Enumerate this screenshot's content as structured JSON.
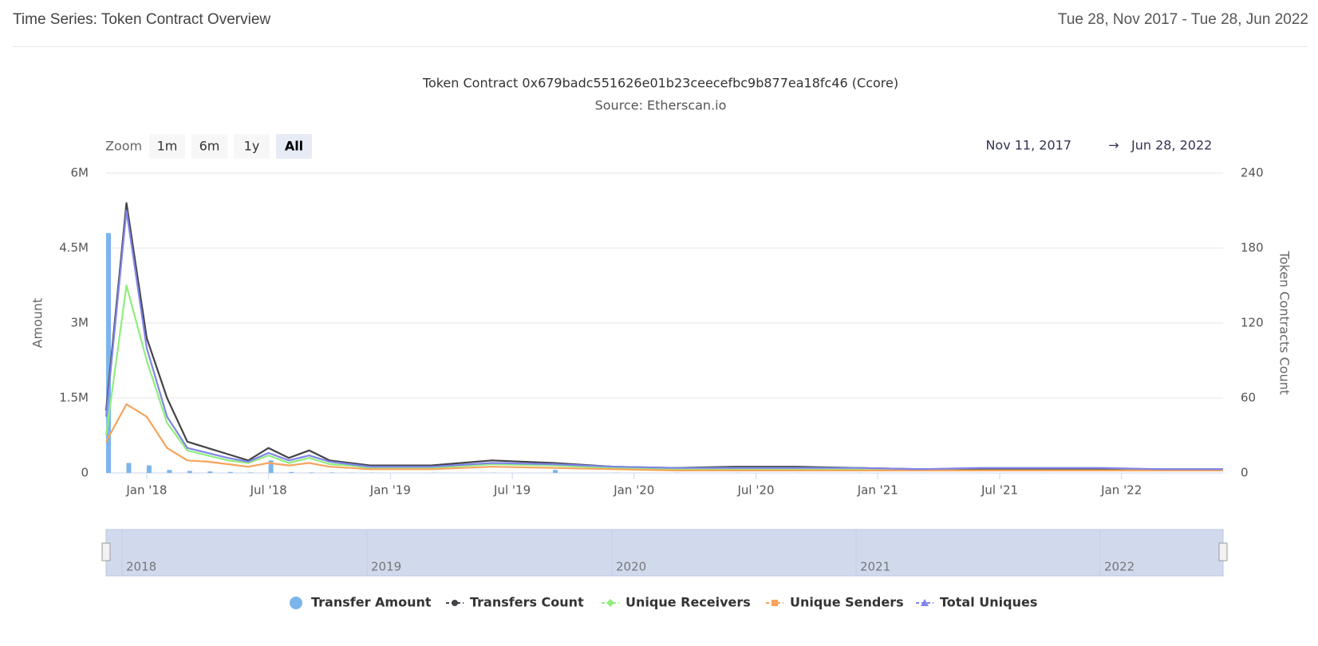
{
  "header": {
    "title": "Time Series: Token Contract Overview",
    "date_range": "Tue 28, Nov 2017 - Tue 28, Jun 2022"
  },
  "chart_data": {
    "type": "bar-line",
    "title": "Token Contract 0x679badc551626e01b23ceecefbc9b877ea18fc46 (Ccore)",
    "subtitle": "Source: Etherscan.io",
    "zoom_label": "Zoom",
    "zoom_buttons": [
      "1m",
      "6m",
      "1y",
      "All"
    ],
    "range_from": "Nov 11, 2017",
    "range_separator": "→",
    "range_to": "Jun 28, 2022",
    "y_label": "Amount",
    "y2_label": "Token Contracts Count",
    "x": [
      "2017-11",
      "2017-12",
      "2018-01",
      "2018-02",
      "2018-03",
      "2018-04",
      "2018-05",
      "2018-06",
      "2018-07",
      "2018-08",
      "2018-09",
      "2018-10",
      "2018-11",
      "2018-12",
      "2019-03",
      "2019-06",
      "2019-09",
      "2019-12",
      "2020-03",
      "2020-06",
      "2020-09",
      "2020-12",
      "2021-03",
      "2021-06",
      "2021-09",
      "2021-12",
      "2022-03",
      "2022-06"
    ],
    "xlim": [
      "2017-11",
      "2022-06"
    ],
    "xticks": [
      {
        "value": "2018-01",
        "label": "Jan '18"
      },
      {
        "value": "2018-07",
        "label": "Jul '18"
      },
      {
        "value": "2019-01",
        "label": "Jan '19"
      },
      {
        "value": "2019-07",
        "label": "Jul '19"
      },
      {
        "value": "2020-01",
        "label": "Jan '20"
      },
      {
        "value": "2020-07",
        "label": "Jul '20"
      },
      {
        "value": "2021-01",
        "label": "Jan '21"
      },
      {
        "value": "2021-07",
        "label": "Jul '21"
      },
      {
        "value": "2022-01",
        "label": "Jan '22"
      }
    ],
    "ylim": [
      0,
      6000000
    ],
    "yticks": [
      0,
      {
        "value": 1500000,
        "label": "1.5M"
      },
      {
        "value": 3000000,
        "label": "3M"
      },
      {
        "value": 4500000,
        "label": "4.5M"
      },
      {
        "value": 6000000,
        "label": "6M"
      }
    ],
    "y2lim": [
      0,
      240
    ],
    "y2ticks": [
      0,
      60,
      120,
      180,
      240
    ],
    "grid": true,
    "series": [
      {
        "name": "Transfer Amount",
        "color": "#7cb5ec",
        "kind": "bar",
        "values": [
          4800000,
          200000,
          150000,
          60000,
          40000,
          30000,
          20000,
          10000,
          250000,
          20000,
          10000,
          10000,
          5000,
          5000,
          5000,
          5000,
          60000,
          5000,
          5000,
          3000,
          3000,
          3000,
          2000,
          2000,
          2000,
          2000,
          2000,
          2000
        ]
      },
      {
        "name": "Transfers Count",
        "color": "#434348",
        "kind": "line",
        "axis": "y2",
        "marker": "circle",
        "values": [
          50,
          216,
          108,
          60,
          25,
          20,
          15,
          10,
          20,
          12,
          18,
          10,
          8,
          6,
          6,
          10,
          8,
          5,
          4,
          5,
          5,
          4,
          3,
          3,
          3,
          3,
          3,
          3
        ]
      },
      {
        "name": "Unique Receivers",
        "color": "#90ed7d",
        "kind": "line",
        "axis": "y2",
        "marker": "diamond",
        "values": [
          30,
          150,
          90,
          40,
          18,
          14,
          10,
          8,
          14,
          8,
          12,
          7,
          6,
          4,
          4,
          7,
          6,
          4,
          3,
          3,
          3,
          3,
          2,
          2,
          2,
          2,
          2,
          2
        ]
      },
      {
        "name": "Unique Senders",
        "color": "#f7a35c",
        "kind": "line",
        "axis": "y2",
        "marker": "square",
        "values": [
          25,
          55,
          45,
          20,
          10,
          9,
          7,
          5,
          8,
          6,
          8,
          5,
          4,
          3,
          3,
          5,
          4,
          3,
          2,
          2,
          2,
          2,
          2,
          2,
          2,
          2,
          2,
          2
        ]
      },
      {
        "name": "Total Uniques",
        "color": "#8085e9",
        "kind": "line",
        "axis": "y2",
        "marker": "triangle",
        "values": [
          45,
          210,
          100,
          45,
          20,
          16,
          12,
          9,
          16,
          10,
          14,
          9,
          7,
          5,
          5,
          8,
          7,
          5,
          4,
          4,
          4,
          4,
          3,
          4,
          4,
          4,
          3,
          3
        ]
      }
    ],
    "navigator": {
      "labels": [
        "2018",
        "2019",
        "2020",
        "2021",
        "2022"
      ]
    }
  }
}
